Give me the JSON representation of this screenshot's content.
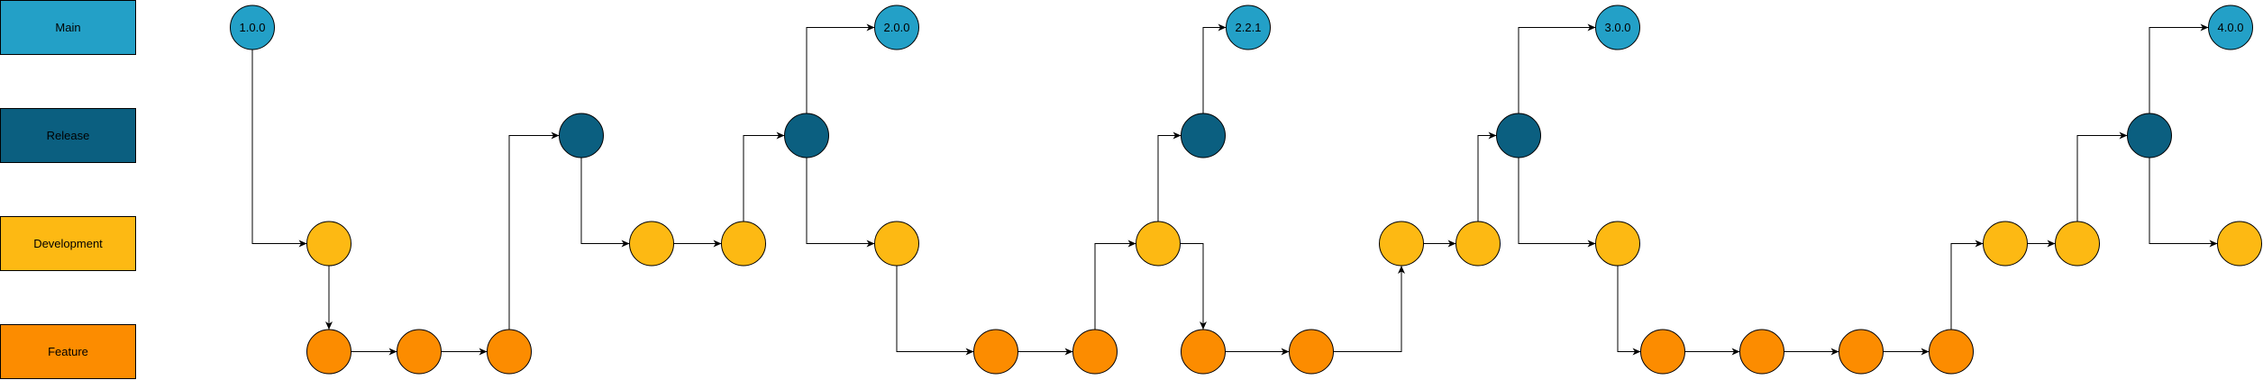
{
  "colors": {
    "main": "#23A0C7",
    "release": "#0B5F80",
    "development": "#FDB913",
    "feature": "#FC8C00",
    "stroke": "#000000",
    "edge": "#000000"
  },
  "lanes": [
    {
      "id": "main",
      "label": "Main"
    },
    {
      "id": "release",
      "label": "Release"
    },
    {
      "id": "development",
      "label": "Development"
    },
    {
      "id": "feature",
      "label": "Feature"
    }
  ],
  "nodes": [
    {
      "id": "m1",
      "lane": "main",
      "label": "1.0.0"
    },
    {
      "id": "d1",
      "lane": "development",
      "label": ""
    },
    {
      "id": "f1",
      "lane": "feature",
      "label": ""
    },
    {
      "id": "f2",
      "lane": "feature",
      "label": ""
    },
    {
      "id": "f3",
      "lane": "feature",
      "label": ""
    },
    {
      "id": "r1",
      "lane": "release",
      "label": ""
    },
    {
      "id": "d2",
      "lane": "development",
      "label": ""
    },
    {
      "id": "d3",
      "lane": "development",
      "label": ""
    },
    {
      "id": "r2",
      "lane": "release",
      "label": ""
    },
    {
      "id": "m2",
      "lane": "main",
      "label": "2.0.0"
    },
    {
      "id": "d4",
      "lane": "development",
      "label": ""
    },
    {
      "id": "f4",
      "lane": "feature",
      "label": ""
    },
    {
      "id": "f5",
      "lane": "feature",
      "label": ""
    },
    {
      "id": "d5",
      "lane": "development",
      "label": ""
    },
    {
      "id": "r3",
      "lane": "release",
      "label": ""
    },
    {
      "id": "m3",
      "lane": "main",
      "label": "2.2.1"
    },
    {
      "id": "f6",
      "lane": "feature",
      "label": ""
    },
    {
      "id": "f7",
      "lane": "feature",
      "label": ""
    },
    {
      "id": "d6",
      "lane": "development",
      "label": ""
    },
    {
      "id": "d7",
      "lane": "development",
      "label": ""
    },
    {
      "id": "r4",
      "lane": "release",
      "label": ""
    },
    {
      "id": "m4",
      "lane": "main",
      "label": "3.0.0"
    },
    {
      "id": "d8",
      "lane": "development",
      "label": ""
    },
    {
      "id": "f8",
      "lane": "feature",
      "label": ""
    },
    {
      "id": "f9",
      "lane": "feature",
      "label": ""
    },
    {
      "id": "f10",
      "lane": "feature",
      "label": ""
    },
    {
      "id": "f11",
      "lane": "feature",
      "label": ""
    },
    {
      "id": "d9",
      "lane": "development",
      "label": ""
    },
    {
      "id": "d10",
      "lane": "development",
      "label": ""
    },
    {
      "id": "r5",
      "lane": "release",
      "label": ""
    },
    {
      "id": "m5",
      "lane": "main",
      "label": "4.0.0"
    },
    {
      "id": "d11",
      "lane": "development",
      "label": ""
    }
  ],
  "edges": [
    {
      "from": "m1",
      "to": "d1"
    },
    {
      "from": "d1",
      "to": "f1"
    },
    {
      "from": "f1",
      "to": "f2"
    },
    {
      "from": "f2",
      "to": "f3"
    },
    {
      "from": "f3",
      "to": "r1"
    },
    {
      "from": "r1",
      "to": "d2"
    },
    {
      "from": "d2",
      "to": "d3"
    },
    {
      "from": "d3",
      "to": "r2"
    },
    {
      "from": "r2",
      "to": "m2"
    },
    {
      "from": "r2",
      "to": "d4"
    },
    {
      "from": "d4",
      "to": "f4"
    },
    {
      "from": "f4",
      "to": "f5"
    },
    {
      "from": "f5",
      "to": "d5"
    },
    {
      "from": "d5",
      "to": "r3"
    },
    {
      "from": "r3",
      "to": "m3"
    },
    {
      "from": "d5",
      "to": "f6"
    },
    {
      "from": "f6",
      "to": "f7"
    },
    {
      "from": "f7",
      "to": "d6"
    },
    {
      "from": "d6",
      "to": "d7"
    },
    {
      "from": "d7",
      "to": "r4"
    },
    {
      "from": "r4",
      "to": "m4"
    },
    {
      "from": "r4",
      "to": "d8"
    },
    {
      "from": "d8",
      "to": "f8"
    },
    {
      "from": "f8",
      "to": "f9"
    },
    {
      "from": "f9",
      "to": "f10"
    },
    {
      "from": "f10",
      "to": "f11"
    },
    {
      "from": "f11",
      "to": "d9"
    },
    {
      "from": "d9",
      "to": "d10"
    },
    {
      "from": "d10",
      "to": "r5"
    },
    {
      "from": "r5",
      "to": "m5"
    },
    {
      "from": "r5",
      "to": "d11"
    }
  ]
}
